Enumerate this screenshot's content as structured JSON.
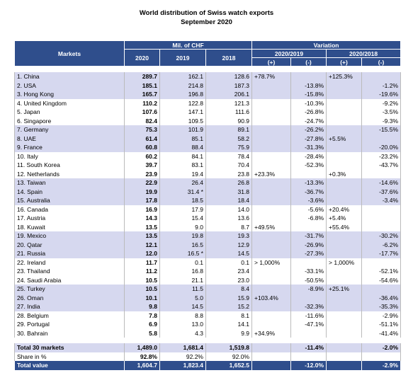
{
  "title": "World distribution of Swiss watch exports",
  "subtitle": "September 2020",
  "header": {
    "markets": "Markets",
    "mil": "Mil. of CHF",
    "variation": "Variation",
    "years": [
      "2020",
      "2019",
      "2018"
    ],
    "periods": [
      "2020/2019",
      "2020/2018"
    ],
    "signs": [
      "(+)",
      "(-)",
      "(+)",
      "(-)"
    ]
  },
  "rows": [
    [
      "1. China",
      "289.7",
      "162.1",
      "128.6",
      "+78.7%",
      null,
      "+125.3%",
      null
    ],
    [
      "2. USA",
      "185.1",
      "214.8",
      "187.3",
      null,
      "-13.8%",
      null,
      "-1.2%"
    ],
    [
      "3. Hong Kong",
      "165.7",
      "196.8",
      "206.1",
      null,
      "-15.8%",
      null,
      "-19.6%"
    ],
    [
      "4. United Kingdom",
      "110.2",
      "122.8",
      "121.3",
      null,
      "-10.3%",
      null,
      "-9.2%"
    ],
    [
      "5. Japan",
      "107.6",
      "147.1",
      "111.6",
      null,
      "-26.8%",
      null,
      "-3.5%"
    ],
    [
      "6. Singapore",
      "82.4",
      "109.5",
      "90.9",
      null,
      "-24.7%",
      null,
      "-9.3%"
    ],
    [
      "7. Germany",
      "75.3",
      "101.9",
      "89.1",
      null,
      "-26.2%",
      null,
      "-15.5%"
    ],
    [
      "8. UAE",
      "61.4",
      "85.1",
      "58.2",
      null,
      "-27.8%",
      "+5.5%",
      null
    ],
    [
      "9. France",
      "60.8",
      "88.4",
      "75.9",
      null,
      "-31.3%",
      null,
      "-20.0%"
    ],
    [
      "10. Italy",
      "60.2",
      "84.1",
      "78.4",
      null,
      "-28.4%",
      null,
      "-23.2%"
    ],
    [
      "11. South Korea",
      "39.7",
      "83.1",
      "70.4",
      null,
      "-52.3%",
      null,
      "-43.7%"
    ],
    [
      "12. Netherlands",
      "23.9",
      "19.4",
      "23.8",
      "+23.3%",
      null,
      "+0.3%",
      null
    ],
    [
      "13. Taiwan",
      "22.9",
      "26.4",
      "26.8",
      null,
      "-13.3%",
      null,
      "-14.6%"
    ],
    [
      "14. Spain",
      "19.9",
      "31.4 *",
      "31.8",
      null,
      "-36.7%",
      null,
      "-37.6%"
    ],
    [
      "15. Australia",
      "17.8",
      "18.5",
      "18.4",
      null,
      "-3.6%",
      null,
      "-3.4%"
    ],
    [
      "16. Canada",
      "16.9",
      "17.9",
      "14.0",
      null,
      "-5.6%",
      "+20.4%",
      null
    ],
    [
      "17. Austria",
      "14.3",
      "15.4",
      "13.6",
      null,
      "-6.8%",
      "+5.4%",
      null
    ],
    [
      "18. Kuwait",
      "13.5",
      "9.0",
      "8.7",
      "+49.5%",
      null,
      "+55.4%",
      null
    ],
    [
      "19. Mexico",
      "13.5",
      "19.8",
      "19.3",
      null,
      "-31.7%",
      null,
      "-30.2%"
    ],
    [
      "20. Qatar",
      "12.1",
      "16.5",
      "12.9",
      null,
      "-26.9%",
      null,
      "-6.2%"
    ],
    [
      "21. Russia",
      "12.0",
      "16.5 *",
      "14.5",
      null,
      "-27.3%",
      null,
      "-17.7%"
    ],
    [
      "22. Ireland",
      "11.7",
      "0.1",
      "0.1",
      "> 1,000%",
      null,
      "> 1,000%",
      null
    ],
    [
      "23. Thailand",
      "11.2",
      "16.8",
      "23.4",
      null,
      "-33.1%",
      null,
      "-52.1%"
    ],
    [
      "24. Saudi Arabia",
      "10.5",
      "21.1",
      "23.0",
      null,
      "-50.5%",
      null,
      "-54.6%"
    ],
    [
      "25. Turkey",
      "10.5",
      "11.5",
      "8.4",
      null,
      "-8.9%",
      "+25.1%",
      null
    ],
    [
      "26. Oman",
      "10.1",
      "5.0",
      "15.9",
      "+103.4%",
      null,
      null,
      "-36.4%"
    ],
    [
      "27. India",
      "9.8",
      "14.5",
      "15.2",
      null,
      "-32.3%",
      null,
      "-35.3%"
    ],
    [
      "28. Belgium",
      "7.8",
      "8.8",
      "8.1",
      null,
      "-11.6%",
      null,
      "-2.9%"
    ],
    [
      "29. Portugal",
      "6.9",
      "13.0",
      "14.1",
      null,
      "-47.1%",
      null,
      "-51.1%"
    ],
    [
      "30. Bahrain",
      "5.8",
      "4.3",
      "9.9",
      "+34.9%",
      null,
      null,
      "-41.4%"
    ]
  ],
  "total_30": [
    "Total 30 markets",
    "1,489.0",
    "1,681.4",
    "1,519.8",
    null,
    "-11.4%",
    null,
    "-2.0%"
  ],
  "share": [
    "Share in %",
    "92.8%",
    "92.2%",
    "92.0%",
    null,
    null,
    null,
    null
  ],
  "total_value": [
    "Total value",
    "1,604.7",
    "1,823.4",
    "1,652.5",
    null,
    "-12.0%",
    null,
    "-2.9%"
  ]
}
